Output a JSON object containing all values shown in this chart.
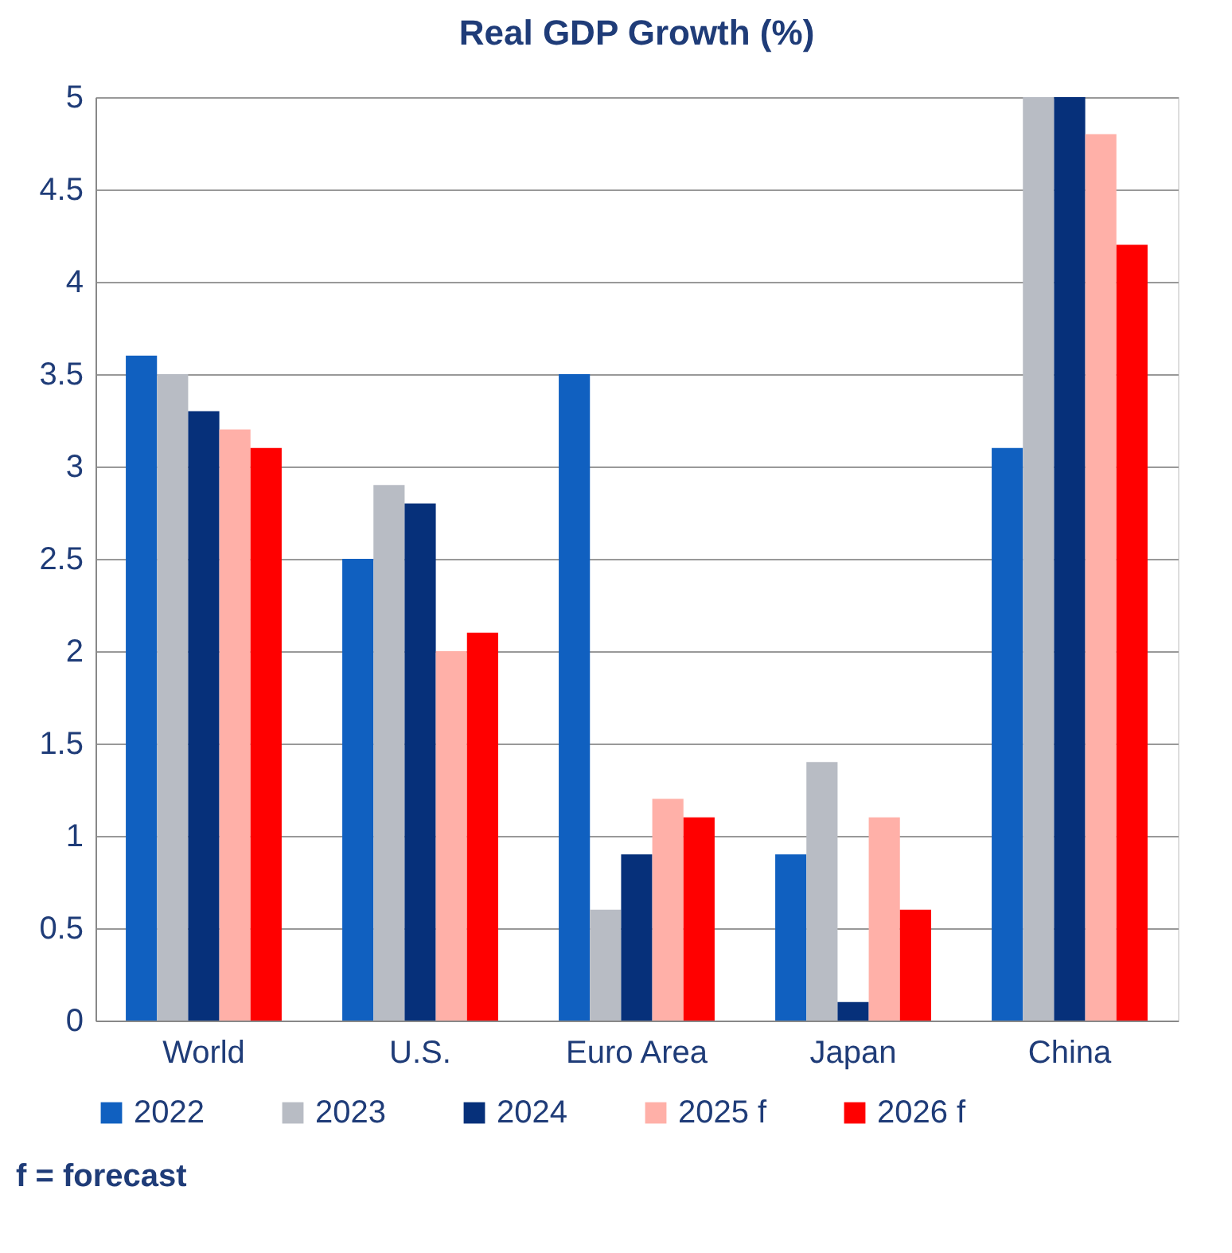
{
  "chart_data": {
    "type": "bar",
    "title": "Real GDP Growth (%)",
    "categories": [
      "World",
      "U.S.",
      "Euro Area",
      "Japan",
      "China"
    ],
    "series": [
      {
        "name": "2022",
        "color": "#1060c0",
        "values": [
          3.6,
          2.5,
          3.5,
          0.9,
          3.1
        ]
      },
      {
        "name": "2023",
        "color": "#b8bcc4",
        "values": [
          3.5,
          2.9,
          0.6,
          1.4,
          5
        ]
      },
      {
        "name": "2024",
        "color": "#06307a",
        "values": [
          3.3,
          2.8,
          0.9,
          0.1,
          5
        ]
      },
      {
        "name": "2025 f",
        "color": "#ffb0a8",
        "values": [
          3.2,
          2.0,
          1.2,
          1.1,
          4.8
        ]
      },
      {
        "name": "2026 f",
        "color": "#ff0000",
        "values": [
          3.1,
          2.1,
          1.1,
          0.6,
          4.2
        ]
      }
    ],
    "ylim": [
      0,
      5
    ],
    "yticks": [
      0,
      0.5,
      1,
      1.5,
      2,
      2.5,
      3,
      3.5,
      4,
      4.5,
      5
    ],
    "grid": "y",
    "legend": "bottom",
    "annotations": [
      "f = forecast"
    ]
  }
}
